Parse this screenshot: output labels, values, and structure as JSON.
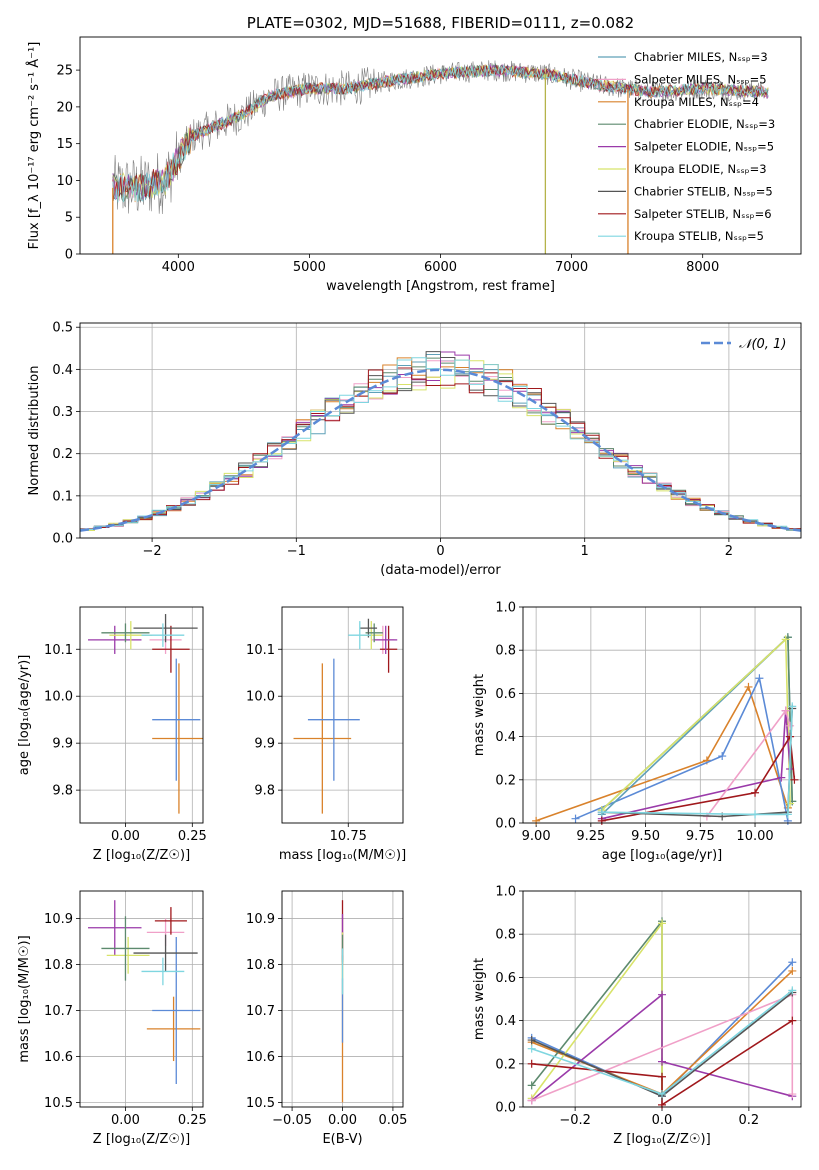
{
  "chart_data": [
    {
      "id": "spectrum",
      "type": "line",
      "title": "PLATE=0302, MJD=51688, FIBERID=0111, z=0.082",
      "xlabel": "wavelength [Angstrom, rest frame]",
      "ylabel": "Flux [f_λ 10⁻¹⁷ erg cm⁻² s⁻¹ Å⁻¹]",
      "xlim": [
        3250,
        8750
      ],
      "ylim": [
        0,
        29.5
      ],
      "xticks": [
        4000,
        5000,
        6000,
        7000,
        8000
      ],
      "yticks": [
        0,
        5,
        10,
        15,
        20,
        25
      ],
      "legend_position": "right",
      "continuum": {
        "x": [
          3500,
          3700,
          3900,
          4000,
          4100,
          4300,
          4500,
          4700,
          5000,
          5300,
          5600,
          6000,
          6400,
          6800,
          7200,
          7600,
          8000,
          8500
        ],
        "y": [
          9,
          9,
          10,
          13,
          16,
          17.5,
          19,
          21.5,
          22.5,
          22.5,
          23.5,
          24.5,
          25,
          24.5,
          23,
          22,
          22.5,
          22
        ]
      },
      "series": [
        {
          "name": "Chabrier MILES, N_SSP=3",
          "color": "#5fa0b8"
        },
        {
          "name": "Salpeter MILES, N_SSP=5",
          "color": "#f0a0c8"
        },
        {
          "name": "Kroupa MILES, N_SSP=4",
          "color": "#d9822b"
        },
        {
          "name": "Chabrier ELODIE, N_SSP=3",
          "color": "#5d8a6e"
        },
        {
          "name": "Salpeter ELODIE, N_SSP=5",
          "color": "#9a3aa9"
        },
        {
          "name": "Kroupa ELODIE, N_SSP=3",
          "color": "#d8e36a"
        },
        {
          "name": "Chabrier STELIB, N_SSP=5",
          "color": "#555555"
        },
        {
          "name": "Salpeter STELIB, N_SSP=6",
          "color": "#a0181c"
        },
        {
          "name": "Kroupa STELIB, N_SSP=5",
          "color": "#7fd6e0"
        }
      ],
      "dropouts": [
        {
          "x": 3500,
          "color": "#d9822b"
        },
        {
          "x": 6800,
          "color": "#b5b34a"
        },
        {
          "x": 7430,
          "color": "#d9822b"
        }
      ]
    },
    {
      "id": "residuals",
      "type": "line",
      "xlabel": "(data-model)/error",
      "ylabel": "Normed distribution",
      "xlim": [
        -2.5,
        2.5
      ],
      "ylim": [
        0,
        0.51
      ],
      "xticks": [
        -2,
        -1,
        0,
        1,
        2
      ],
      "yticks": [
        0.0,
        0.1,
        0.2,
        0.3,
        0.4,
        0.5
      ],
      "grid": true,
      "legend_position": "top-right",
      "gaussian": {
        "name": "𝒩(0, 1)",
        "color": "#5b8ad6",
        "mean": 0,
        "sigma": 1
      },
      "bin_width": 0.1,
      "bin_start": -2.5,
      "series_colors": [
        "#5fa0b8",
        "#f0a0c8",
        "#d9822b",
        "#5d8a6e",
        "#9a3aa9",
        "#d8e36a",
        "#555555",
        "#a0181c",
        "#7fd6e0"
      ]
    },
    {
      "id": "age_vs_Z",
      "type": "scatter",
      "xlabel": "Z [log₁₀(Z/Z☉)]",
      "ylabel": "age  [log₁₀(age/yr)]",
      "xlim": [
        -0.17,
        0.29
      ],
      "ylim": [
        9.73,
        10.19
      ],
      "xticks": [
        0.0,
        0.25
      ],
      "yticks": [
        9.8,
        9.9,
        10.0,
        10.1
      ],
      "grid": true,
      "points": [
        {
          "x": 0.2,
          "y": 9.91,
          "xerr": 0.1,
          "yerr": 0.16,
          "color": "#d9822b"
        },
        {
          "x": 0.19,
          "y": 9.95,
          "xerr": 0.09,
          "yerr": 0.13,
          "color": "#5b8ad6"
        },
        {
          "x": 0.15,
          "y": 10.12,
          "xerr": 0.06,
          "yerr": 0.03,
          "color": "#f0a0c8"
        },
        {
          "x": 0.17,
          "y": 10.1,
          "xerr": 0.07,
          "yerr": 0.05,
          "color": "#a0181c"
        },
        {
          "x": -0.04,
          "y": 10.12,
          "xerr": 0.1,
          "yerr": 0.03,
          "color": "#9a3aa9"
        },
        {
          "x": 0.02,
          "y": 10.13,
          "xerr": 0.08,
          "yerr": 0.03,
          "color": "#d8e36a"
        },
        {
          "x": 0.0,
          "y": 10.135,
          "xerr": 0.09,
          "yerr": 0.02,
          "color": "#5d8a6e"
        },
        {
          "x": 0.15,
          "y": 10.145,
          "xerr": 0.12,
          "yerr": 0.03,
          "color": "#555555"
        },
        {
          "x": 0.14,
          "y": 10.13,
          "xerr": 0.08,
          "yerr": 0.025,
          "color": "#7fd6e0"
        }
      ]
    },
    {
      "id": "age_vs_mass",
      "type": "scatter",
      "xlabel": "mass [log₁₀(M/M☉)]",
      "ylabel": "",
      "xlim": [
        10.52,
        10.94
      ],
      "ylim": [
        9.73,
        10.19
      ],
      "xticks": [
        10.5,
        10.75
      ],
      "yticks": [
        9.8,
        9.9,
        10.0,
        10.1
      ],
      "grid": true,
      "points": [
        {
          "x": 10.66,
          "y": 9.91,
          "xerr": 0.1,
          "yerr": 0.16,
          "color": "#d9822b"
        },
        {
          "x": 10.7,
          "y": 9.95,
          "xerr": 0.09,
          "yerr": 0.13,
          "color": "#5b8ad6"
        },
        {
          "x": 10.87,
          "y": 10.12,
          "xerr": 0.04,
          "yerr": 0.03,
          "color": "#f0a0c8"
        },
        {
          "x": 10.89,
          "y": 10.1,
          "xerr": 0.03,
          "yerr": 0.05,
          "color": "#a0181c"
        },
        {
          "x": 10.88,
          "y": 10.12,
          "xerr": 0.04,
          "yerr": 0.03,
          "color": "#9a3aa9"
        },
        {
          "x": 10.83,
          "y": 10.13,
          "xerr": 0.04,
          "yerr": 0.03,
          "color": "#d8e36a"
        },
        {
          "x": 10.84,
          "y": 10.135,
          "xerr": 0.03,
          "yerr": 0.02,
          "color": "#5d8a6e"
        },
        {
          "x": 10.82,
          "y": 10.145,
          "xerr": 0.03,
          "yerr": 0.02,
          "color": "#555555"
        },
        {
          "x": 10.79,
          "y": 10.13,
          "xerr": 0.04,
          "yerr": 0.03,
          "color": "#7fd6e0"
        }
      ]
    },
    {
      "id": "weight_vs_age",
      "type": "line",
      "xlabel": "age  [log₁₀(age/yr)]",
      "ylabel": "mass weight",
      "xlim": [
        8.94,
        10.21
      ],
      "ylim": [
        0,
        1.0
      ],
      "xticks": [
        9.0,
        9.25,
        9.5,
        9.75,
        10.0
      ],
      "xticklabels": [
        "9.00",
        "9.25",
        "9.50",
        "9.75",
        "10.00"
      ],
      "yticks": [
        0.0,
        0.2,
        0.4,
        0.6,
        0.8,
        1.0
      ],
      "grid": true,
      "series": [
        {
          "color": "#d9822b",
          "x": [
            9.0,
            9.78,
            9.97,
            10.15
          ],
          "y": [
            0.01,
            0.29,
            0.63,
            0.07
          ]
        },
        {
          "color": "#5b8ad6",
          "x": [
            9.18,
            9.85,
            10.02,
            10.15
          ],
          "y": [
            0.02,
            0.31,
            0.67,
            0.01
          ]
        },
        {
          "color": "#5fa0b8",
          "x": [
            9.3,
            10.15,
            10.17
          ],
          "y": [
            0.04,
            0.86,
            0.1
          ]
        },
        {
          "color": "#5d8a6e",
          "x": [
            9.3,
            10.15,
            10.17
          ],
          "y": [
            0.06,
            0.86,
            0.1
          ]
        },
        {
          "color": "#d8e36a",
          "x": [
            9.3,
            10.14,
            10.16
          ],
          "y": [
            0.06,
            0.85,
            0.09
          ]
        },
        {
          "color": "#9a3aa9",
          "x": [
            9.3,
            10.12,
            10.14,
            10.16
          ],
          "y": [
            0.02,
            0.21,
            0.52,
            0.25
          ]
        },
        {
          "color": "#f0a0c8",
          "x": [
            9.78,
            10.14,
            10.16
          ],
          "y": [
            0.03,
            0.52,
            0.45
          ]
        },
        {
          "color": "#a0181c",
          "x": [
            9.3,
            10.0,
            10.16,
            10.18
          ],
          "y": [
            0.01,
            0.14,
            0.4,
            0.2
          ]
        },
        {
          "color": "#555555",
          "x": [
            9.3,
            9.85,
            10.15,
            10.17
          ],
          "y": [
            0.05,
            0.03,
            0.05,
            0.53
          ]
        },
        {
          "color": "#7fd6e0",
          "x": [
            9.3,
            10.0,
            10.15,
            10.17
          ],
          "y": [
            0.05,
            0.04,
            0.04,
            0.54
          ]
        }
      ]
    },
    {
      "id": "mass_vs_Z",
      "type": "scatter",
      "xlabel": "Z [log₁₀(Z/Z☉)]",
      "ylabel": "mass [log₁₀(M/M☉)]",
      "xlim": [
        -0.17,
        0.29
      ],
      "ylim": [
        10.49,
        10.96
      ],
      "xticks": [
        0.0,
        0.25
      ],
      "yticks": [
        10.5,
        10.6,
        10.7,
        10.8,
        10.9
      ],
      "grid": true,
      "points": [
        {
          "x": 0.18,
          "y": 10.66,
          "xerr": 0.1,
          "yerr": 0.07,
          "color": "#d9822b"
        },
        {
          "x": 0.19,
          "y": 10.7,
          "xerr": 0.09,
          "yerr": 0.16,
          "color": "#5b8ad6"
        },
        {
          "x": 0.15,
          "y": 10.87,
          "xerr": 0.07,
          "yerr": 0.03,
          "color": "#f0a0c8"
        },
        {
          "x": 0.17,
          "y": 10.895,
          "xerr": 0.06,
          "yerr": 0.03,
          "color": "#a0181c"
        },
        {
          "x": -0.04,
          "y": 10.88,
          "xerr": 0.1,
          "yerr": 0.06,
          "color": "#9a3aa9"
        },
        {
          "x": 0.01,
          "y": 10.82,
          "xerr": 0.08,
          "yerr": 0.04,
          "color": "#d8e36a"
        },
        {
          "x": 0.0,
          "y": 10.835,
          "xerr": 0.09,
          "yerr": 0.07,
          "color": "#5d8a6e"
        },
        {
          "x": 0.15,
          "y": 10.825,
          "xerr": 0.12,
          "yerr": 0.04,
          "color": "#555555"
        },
        {
          "x": 0.14,
          "y": 10.785,
          "xerr": 0.08,
          "yerr": 0.03,
          "color": "#7fd6e0"
        }
      ]
    },
    {
      "id": "mass_vs_ebv",
      "type": "scatter",
      "xlabel": "E(B-V)",
      "ylabel": "",
      "xlim": [
        -0.06,
        0.06
      ],
      "ylim": [
        10.49,
        10.96
      ],
      "xticks": [
        -0.05,
        0.0,
        0.05
      ],
      "xticklabels": [
        "−0.05",
        "0.00",
        "0.05"
      ],
      "yticks": [
        10.5,
        10.6,
        10.7,
        10.8,
        10.9
      ],
      "grid": true,
      "points": [
        {
          "x": 0.0,
          "y": 10.66,
          "xerr": 0,
          "yerr": 0.16,
          "color": "#d9822b"
        },
        {
          "x": 0.0,
          "y": 10.7,
          "xerr": 0,
          "yerr": 0.07,
          "color": "#5b8ad6"
        },
        {
          "x": 0.0,
          "y": 10.87,
          "xerr": 0,
          "yerr": 0.07,
          "color": "#a0181c"
        },
        {
          "x": 0.0,
          "y": 10.86,
          "xerr": 0,
          "yerr": 0.05,
          "color": "#9a3aa9"
        },
        {
          "x": 0.0,
          "y": 10.82,
          "xerr": 0,
          "yerr": 0.05,
          "color": "#d8e36a"
        },
        {
          "x": 0.0,
          "y": 10.835,
          "xerr": 0,
          "yerr": 0.03,
          "color": "#5d8a6e"
        },
        {
          "x": 0.0,
          "y": 10.785,
          "xerr": 0,
          "yerr": 0.05,
          "color": "#7fd6e0"
        }
      ]
    },
    {
      "id": "weight_vs_Z",
      "type": "line",
      "xlabel": "Z [log₁₀(Z/Z☉)]",
      "ylabel": "mass weight",
      "xlim": [
        -0.32,
        0.32
      ],
      "ylim": [
        0,
        1.0
      ],
      "xticks": [
        -0.2,
        0.0,
        0.2
      ],
      "xticklabels": [
        "−0.2",
        "0.0",
        "0.2"
      ],
      "yticks": [
        0.0,
        0.2,
        0.4,
        0.6,
        0.8,
        1.0
      ],
      "grid": true,
      "series": [
        {
          "color": "#5b8ad6",
          "x": [
            -0.3,
            0.0,
            0.3
          ],
          "y": [
            0.32,
            0.05,
            0.67
          ]
        },
        {
          "color": "#d9822b",
          "x": [
            -0.3,
            0.0,
            0.3
          ],
          "y": [
            0.3,
            0.06,
            0.63
          ]
        },
        {
          "color": "#5d8a6e",
          "x": [
            -0.3,
            0.0,
            0.0
          ],
          "y": [
            0.1,
            0.86,
            0.06
          ]
        },
        {
          "color": "#d8e36a",
          "x": [
            -0.3,
            0.0,
            0.0
          ],
          "y": [
            0.04,
            0.85,
            0.06
          ]
        },
        {
          "color": "#9a3aa9",
          "x": [
            -0.3,
            0.0,
            0.0,
            0.3
          ],
          "y": [
            0.03,
            0.52,
            0.21,
            0.05
          ]
        },
        {
          "color": "#f0a0c8",
          "x": [
            -0.3,
            0.3,
            0.3
          ],
          "y": [
            0.03,
            0.52,
            0.06
          ]
        },
        {
          "color": "#a0181c",
          "x": [
            -0.3,
            0.0,
            0.0,
            0.3
          ],
          "y": [
            0.2,
            0.14,
            0.01,
            0.4
          ]
        },
        {
          "color": "#555555",
          "x": [
            -0.3,
            0.0,
            0.3
          ],
          "y": [
            0.31,
            0.05,
            0.53
          ]
        },
        {
          "color": "#7fd6e0",
          "x": [
            -0.3,
            0.0,
            0.3
          ],
          "y": [
            0.27,
            0.06,
            0.54
          ]
        }
      ]
    }
  ]
}
